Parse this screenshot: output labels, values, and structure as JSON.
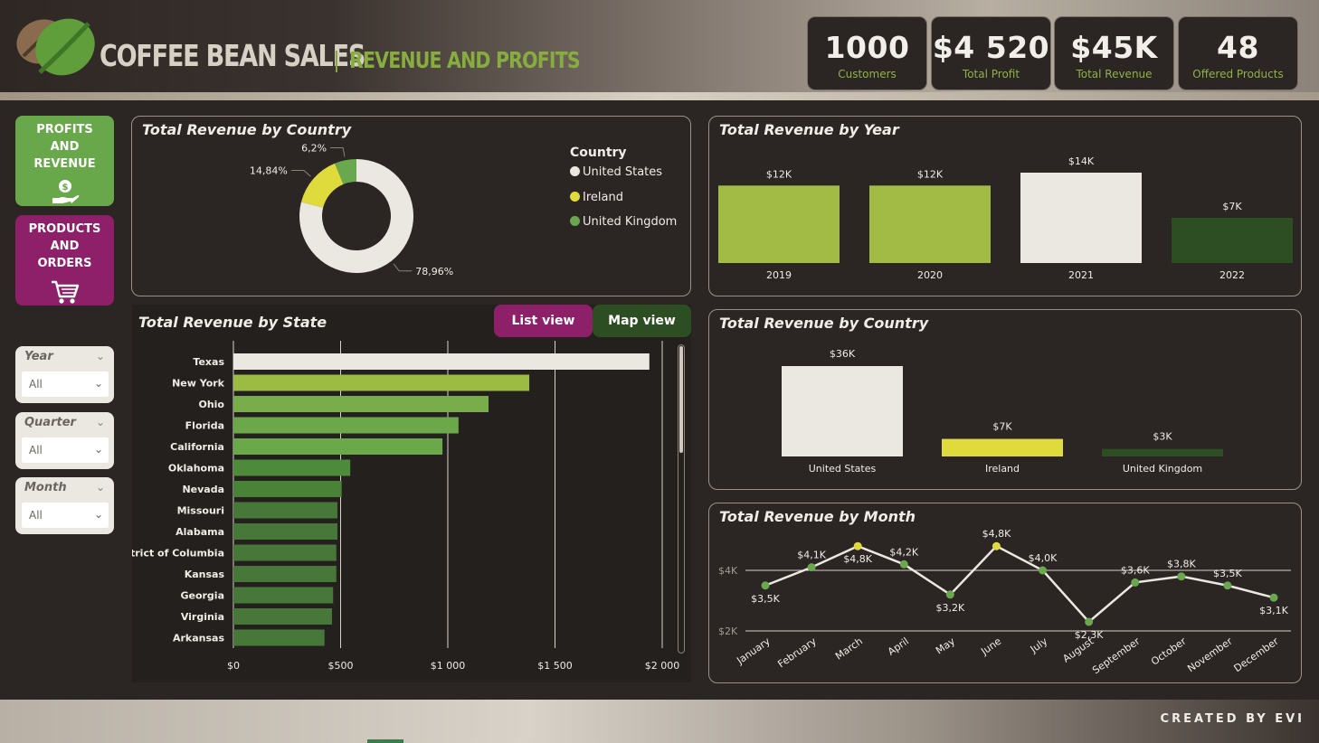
{
  "header": {
    "title": "COFFEE BEAN SALES",
    "subtitle": "REVENUE AND PROFITS"
  },
  "kpis": [
    {
      "value": "1000",
      "label": "Customers"
    },
    {
      "value": "$4 520",
      "label": "Total Profit"
    },
    {
      "value": "$45K",
      "label": "Total Revenue"
    },
    {
      "value": "48",
      "label": "Offered Products"
    }
  ],
  "nav": {
    "profits_label": "PROFITS AND REVENUE",
    "products_label": "PRODUCTS AND ORDERS"
  },
  "slicers": [
    {
      "title": "Year",
      "value": "All"
    },
    {
      "title": "Quarter",
      "value": "All"
    },
    {
      "title": "Month",
      "value": "All"
    }
  ],
  "view_buttons": {
    "list": "List view",
    "map": "Map view"
  },
  "footer": {
    "credit": "CREATED BY EVI"
  },
  "colors": {
    "green": "#69a84a",
    "purple": "#8e1f69",
    "lime": "#a1bb45",
    "yellow": "#e0db3c",
    "offwhite": "#ebe8e2",
    "darkgreen": "#2d4e22"
  },
  "chart_data": [
    {
      "type": "pie",
      "title": "Total Revenue by Country",
      "legend_title": "Country",
      "legend_position": "right",
      "categories": [
        "United States",
        "Ireland",
        "United Kingdom"
      ],
      "values": [
        78.96,
        14.84,
        6.2
      ],
      "data_labels": [
        "78,96%",
        "14,84%",
        "6,2%"
      ],
      "colors": [
        "#ebe8e2",
        "#e0db3c",
        "#6aa84f"
      ]
    },
    {
      "type": "bar",
      "title": "Total Revenue by Year",
      "categories": [
        "2019",
        "2020",
        "2021",
        "2022"
      ],
      "values": [
        12,
        12,
        14,
        7
      ],
      "data_labels": [
        "$12K",
        "$12K",
        "$14K",
        "$7K"
      ],
      "colors": [
        "#a1bb45",
        "#a1bb45",
        "#ebe8e2",
        "#2d4e22"
      ]
    },
    {
      "type": "bar",
      "orientation": "horizontal",
      "title": "Total Revenue by State",
      "categories": [
        "Texas",
        "New York",
        "Ohio",
        "Florida",
        "California",
        "Oklahoma",
        "Nevada",
        "Missouri",
        "Alabama",
        "District of Columbia",
        "Kansas",
        "Georgia",
        "Virginia",
        "Arkansas"
      ],
      "values": [
        1940,
        1380,
        1190,
        1050,
        975,
        545,
        505,
        485,
        485,
        480,
        480,
        465,
        460,
        425
      ],
      "colors": [
        "#ebe8e2",
        "#9bbb45",
        "#79ad4b",
        "#6ba84a",
        "#6ba84a",
        "#4d8a3a",
        "#4a8238",
        "#47783a",
        "#47783a",
        "#47783a",
        "#47783a",
        "#47783a",
        "#47783a",
        "#47783a"
      ],
      "xlim": [
        0,
        2000
      ],
      "xticks": [
        0,
        500,
        1000,
        1500,
        2000
      ],
      "xtick_labels": [
        "$0",
        "$500",
        "$1 000",
        "$1 500",
        "$2 000"
      ],
      "grid": true
    },
    {
      "type": "bar",
      "title": "Total Revenue by Country",
      "categories": [
        "United States",
        "Ireland",
        "United Kingdom"
      ],
      "values": [
        36,
        7,
        3
      ],
      "data_labels": [
        "$36K",
        "$7K",
        "$3K"
      ],
      "colors": [
        "#ebe8e2",
        "#e0db3c",
        "#2d4e22"
      ]
    },
    {
      "type": "line",
      "title": "Total Revenue by Month",
      "categories": [
        "January",
        "February",
        "March",
        "April",
        "May",
        "June",
        "July",
        "August",
        "September",
        "October",
        "November",
        "December"
      ],
      "values": [
        3.5,
        4.1,
        4.8,
        4.2,
        3.2,
        4.8,
        4.0,
        2.3,
        3.6,
        3.8,
        3.5,
        3.1
      ],
      "data_labels": [
        "$3,5K",
        "$4,1K",
        "$4,8K",
        "$4,2K",
        "$3,2K",
        "$4,8K",
        "$4,0K",
        "$2,3K",
        "$3,6K",
        "$3,8K",
        "$3,5K",
        "$3,1K"
      ],
      "highlight": [
        false,
        false,
        true,
        false,
        false,
        true,
        false,
        false,
        false,
        false,
        false,
        false
      ],
      "yticks": [
        2,
        4
      ],
      "ytick_labels": [
        "$2K",
        "$4K"
      ],
      "grid": true
    }
  ]
}
